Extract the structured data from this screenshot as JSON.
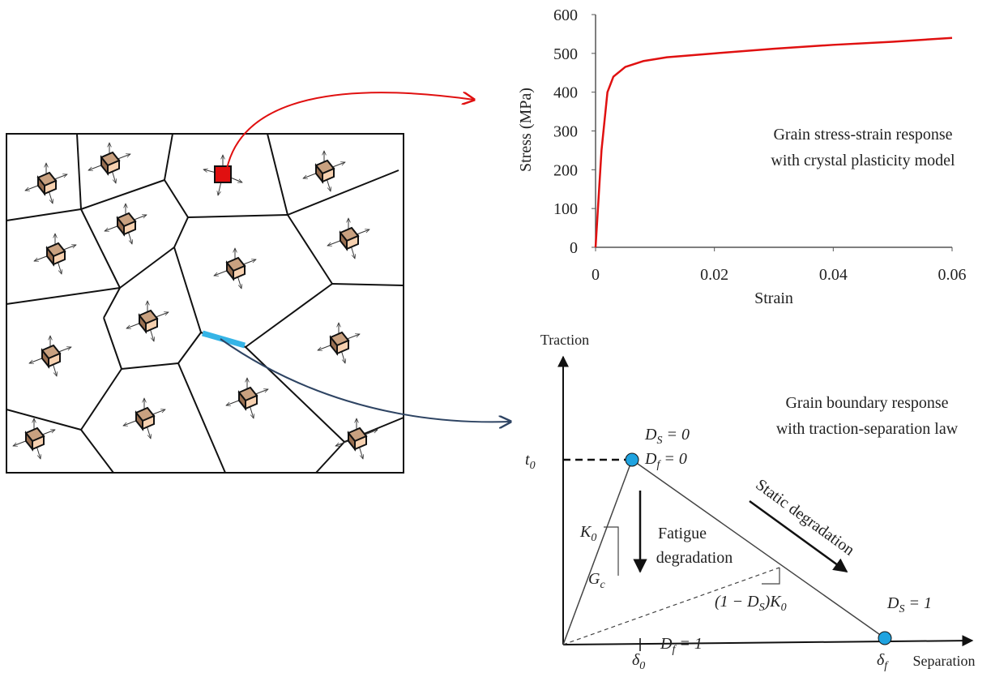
{
  "chart_data": {
    "type": "line",
    "x_label": "Strain",
    "y_label": "Stress (MPa)",
    "x": [
      0,
      0.001,
      0.002,
      0.003,
      0.005,
      0.008,
      0.012,
      0.02,
      0.03,
      0.04,
      0.05,
      0.06
    ],
    "values": [
      0,
      250,
      400,
      440,
      465,
      480,
      490,
      500,
      512,
      522,
      530,
      540
    ],
    "color": "#e01010",
    "xlim": [
      0,
      0.06
    ],
    "ylim": [
      0,
      600
    ],
    "xticks": [
      0,
      0.02,
      0.04,
      0.06
    ],
    "yticks": [
      0,
      100,
      200,
      300,
      400,
      500,
      600
    ],
    "annotation": [
      "Grain stress-strain response",
      "with crystal plasticity model"
    ]
  },
  "traction_separation": {
    "y_axis": "Traction",
    "x_axis": "Separation",
    "description": [
      "Grain boundary response",
      "with traction-separation law"
    ],
    "t0": {
      "base": "t",
      "sub": "0"
    },
    "ds0": {
      "base": "D",
      "sub": "S",
      "rest": " = 0"
    },
    "df0": {
      "base": "D",
      "sub": "f",
      "rest": " = 0"
    },
    "ds1": {
      "base": "D",
      "sub": "S",
      "rest": " = 1"
    },
    "df1": {
      "base": "D",
      "sub": "f",
      "rest": " = 1"
    },
    "k0": {
      "base": "K",
      "sub": "0"
    },
    "gc": {
      "base": "G",
      "sub": "c"
    },
    "fatigue": [
      "Fatigue",
      "degradation"
    ],
    "static": "Static degradation",
    "reduced_stiffness": {
      "a": "(1 − D",
      "b": "S",
      "c": ")K",
      "d": "0"
    },
    "delta0": {
      "base": "δ",
      "sub": "0"
    },
    "deltaf": {
      "base": "δ",
      "sub": "f"
    }
  }
}
